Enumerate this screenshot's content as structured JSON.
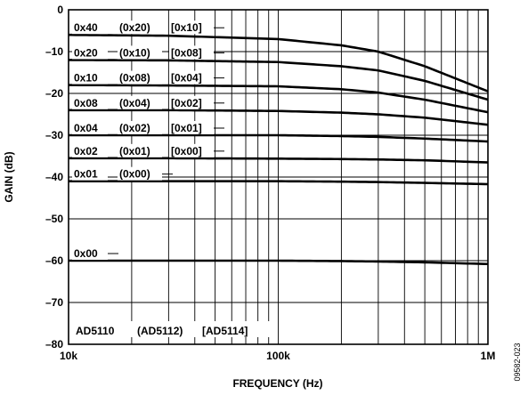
{
  "chart_data": {
    "type": "line",
    "xlabel": "FREQUENCY (Hz)",
    "ylabel": "GAIN (dB)",
    "x_scale": "log",
    "xlim": [
      10000,
      1000000
    ],
    "ylim": [
      -80,
      0
    ],
    "x_ticks": [
      {
        "value": 10000,
        "label": "10k"
      },
      {
        "value": 100000,
        "label": "100k"
      },
      {
        "value": 1000000,
        "label": "1M"
      }
    ],
    "y_ticks": [
      {
        "value": 0,
        "label": "0"
      },
      {
        "value": -10,
        "label": "–10"
      },
      {
        "value": -20,
        "label": "–20"
      },
      {
        "value": -30,
        "label": "–30"
      },
      {
        "value": -40,
        "label": "–40"
      },
      {
        "value": -50,
        "label": "–50"
      },
      {
        "value": -60,
        "label": "–60"
      },
      {
        "value": -70,
        "label": "–70"
      },
      {
        "value": -80,
        "label": "–80"
      }
    ],
    "grid": true,
    "legend_caption": [
      "AD5110",
      "(AD5112)",
      "[AD5114]"
    ],
    "figure_id": "09582-023",
    "series": [
      {
        "codes": [
          "0x40",
          "(0x20)",
          "[0x10]"
        ],
        "x": [
          10000,
          30000,
          100000,
          200000,
          300000,
          500000,
          1000000
        ],
        "y": [
          -6.0,
          -6.2,
          -7.0,
          -8.5,
          -10.0,
          -13.5,
          -19.5
        ]
      },
      {
        "codes": [
          "0x20",
          "(0x10)",
          "[0x08]"
        ],
        "x": [
          10000,
          30000,
          100000,
          200000,
          300000,
          500000,
          1000000
        ],
        "y": [
          -12.0,
          -12.1,
          -12.5,
          -13.5,
          -14.5,
          -17.0,
          -21.5
        ]
      },
      {
        "codes": [
          "0x10",
          "(0x08)",
          "[0x04]"
        ],
        "x": [
          10000,
          30000,
          100000,
          200000,
          300000,
          500000,
          1000000
        ],
        "y": [
          -18.0,
          -18.1,
          -18.3,
          -19.0,
          -19.8,
          -21.5,
          -24.5
        ]
      },
      {
        "codes": [
          "0x08",
          "(0x04)",
          "[0x02]"
        ],
        "x": [
          10000,
          30000,
          100000,
          200000,
          300000,
          500000,
          1000000
        ],
        "y": [
          -24.0,
          -24.0,
          -24.2,
          -24.6,
          -25.0,
          -25.8,
          -27.5
        ]
      },
      {
        "codes": [
          "0x04",
          "(0x02)",
          "[0x01]"
        ],
        "x": [
          10000,
          30000,
          100000,
          200000,
          300000,
          500000,
          1000000
        ],
        "y": [
          -30.0,
          -30.0,
          -30.0,
          -30.2,
          -30.4,
          -30.8,
          -31.5
        ]
      },
      {
        "codes": [
          "0x02",
          "(0x01)",
          "[0x00]"
        ],
        "x": [
          10000,
          30000,
          100000,
          200000,
          300000,
          500000,
          1000000
        ],
        "y": [
          -35.5,
          -35.5,
          -35.6,
          -35.7,
          -35.8,
          -36.0,
          -36.5
        ]
      },
      {
        "codes": [
          "0x01",
          "(0x00)",
          ""
        ],
        "x": [
          10000,
          30000,
          100000,
          200000,
          300000,
          500000,
          1000000
        ],
        "y": [
          -41.0,
          -41.0,
          -41.0,
          -41.1,
          -41.2,
          -41.4,
          -41.7
        ]
      },
      {
        "codes": [
          "0x00",
          "",
          ""
        ],
        "x": [
          10000,
          30000,
          100000,
          200000,
          300000,
          500000,
          1000000
        ],
        "y": [
          -60.0,
          -60.0,
          -60.0,
          -60.1,
          -60.2,
          -60.4,
          -60.8
        ]
      }
    ]
  }
}
